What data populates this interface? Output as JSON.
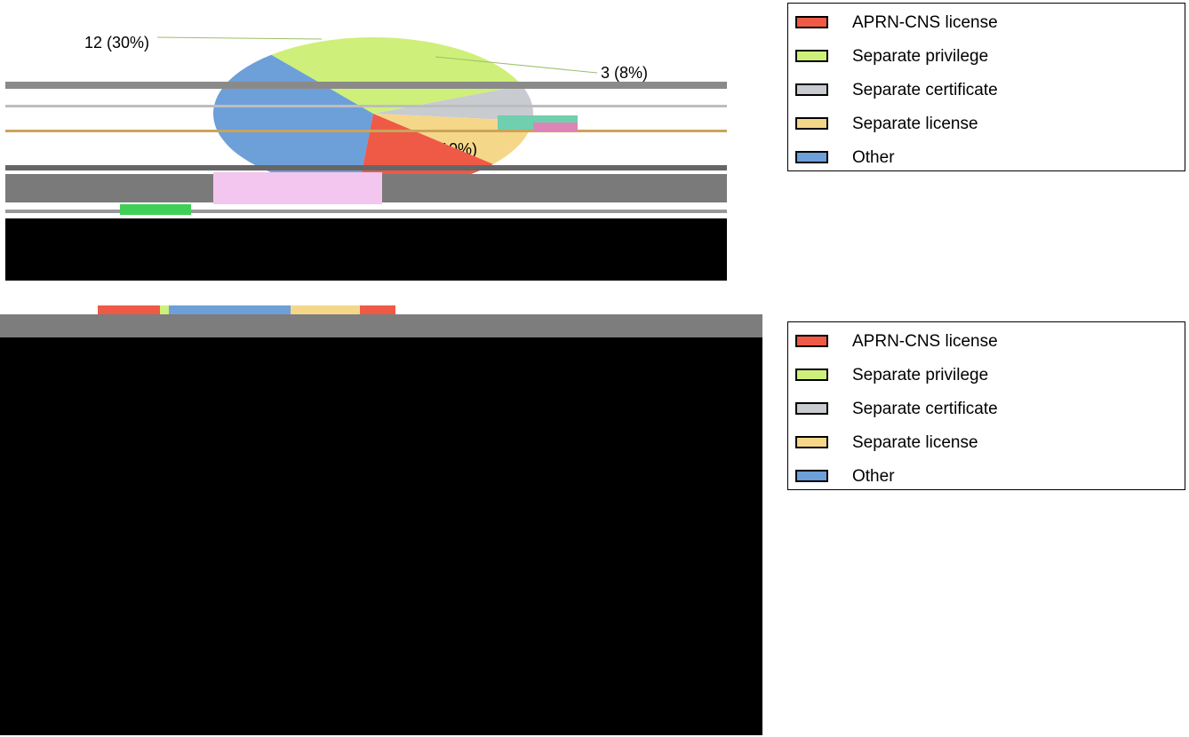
{
  "chart_data": [
    {
      "type": "pie",
      "slices": [
        {
          "category": "Separate privilege",
          "value": 12,
          "label": "12 (30%)",
          "color": "#cef07a"
        },
        {
          "category": "Separate certificate",
          "value": 3,
          "label": "3 (8%)",
          "color": "#c8cbd0"
        },
        {
          "category": "Separate license",
          "value": 4,
          "label": "4 (10%)",
          "color": "#f5d789"
        },
        {
          "category": "APRN-CNS license",
          "value": 6,
          "label": "",
          "color": "#ee5a45"
        },
        {
          "category": "Other",
          "value": 15,
          "label": "",
          "color": "#6d9fd9"
        }
      ],
      "visible_labels": [
        "12 (30%)",
        "3 (8%)",
        "4 (10%)"
      ],
      "legend": {
        "placement": "right",
        "entries": [
          {
            "label": "APRN-CNS license",
            "color": "#ee5a45"
          },
          {
            "label": "Separate privilege",
            "color": "#cef07a"
          },
          {
            "label": "Separate certificate",
            "color": "#c8cbd0"
          },
          {
            "label": "Separate license",
            "color": "#f5d789"
          },
          {
            "label": "Other",
            "color": "#6d9fd9"
          }
        ]
      }
    },
    {
      "type": "bar",
      "orientation": "horizontal-stacked",
      "categories": [
        "APRN-CNS license",
        "Separate privilege",
        "Other",
        "Separate license",
        "APRN-CNS license"
      ],
      "legend": {
        "placement": "right",
        "entries": [
          {
            "label": "APRN-CNS license",
            "color": "#ee5a45"
          },
          {
            "label": "Separate privilege",
            "color": "#cef07a"
          },
          {
            "label": "Separate certificate",
            "color": "#c8cbd0"
          },
          {
            "label": "Separate license",
            "color": "#f5d789"
          },
          {
            "label": "Other",
            "color": "#6d9fd9"
          }
        ]
      }
    }
  ]
}
